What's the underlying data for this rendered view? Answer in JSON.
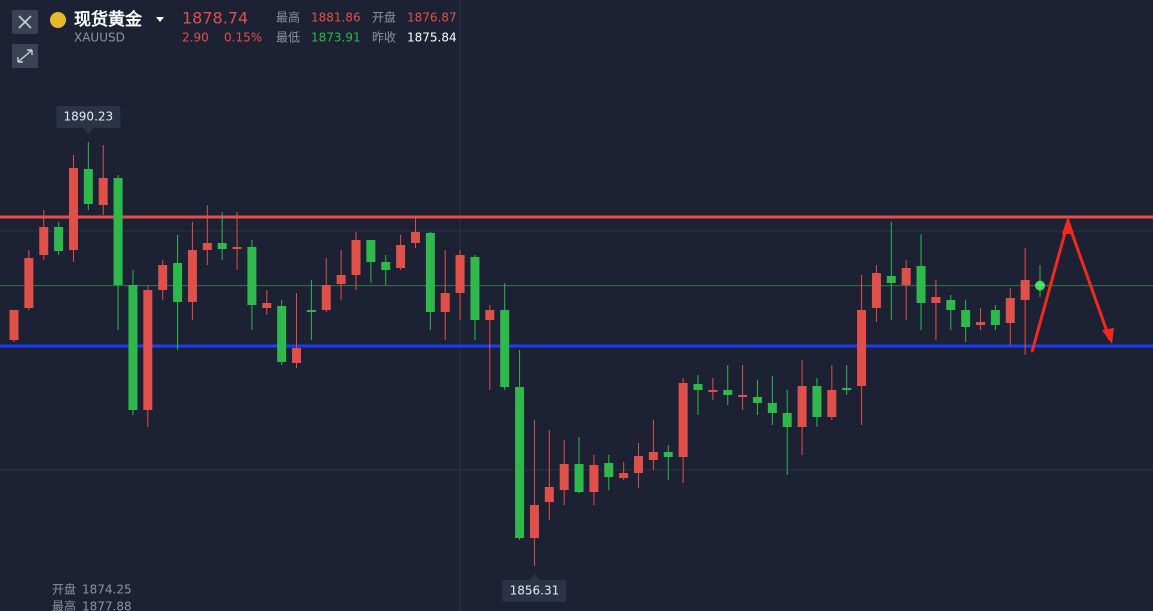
{
  "header": {
    "title": "现货黄金",
    "symbol": "XAUUSD",
    "price": "1878.74",
    "change": "2.90",
    "change_pct": "0.15%",
    "high_label": "最高",
    "high": "1881.86",
    "open_label": "开盘",
    "open": "1876.87",
    "low_label": "最低",
    "low": "1873.91",
    "prev_label": "昨收",
    "prev": "1875.84"
  },
  "footer": {
    "open_label": "开盘",
    "open": "1874.25",
    "high_label": "最高",
    "high": "1877.88"
  },
  "chart_data": {
    "type": "candlestick",
    "up_color": "#e0504a",
    "down_color": "#2fb84c",
    "ylim": [
      1852.71,
      1901.59
    ],
    "open": [
      1874.39,
      1876.95,
      1881.19,
      1883.43,
      1881.59,
      1888.07,
      1885.19,
      1887.35,
      1878.79,
      1868.79,
      1878.39,
      1880.55,
      1877.43,
      1881.59,
      1882.15,
      1881.67,
      1881.83,
      1876.95,
      1877.11,
      1872.55,
      1876.79,
      1876.79,
      1878.87,
      1879.59,
      1882.39,
      1880.63,
      1880.15,
      1882.15,
      1882.95,
      1876.63,
      1878.15,
      1881.03,
      1875.99,
      1876.79,
      1870.63,
      1858.55,
      1861.43,
      1862.39,
      1864.47,
      1862.23,
      1864.55,
      1863.35,
      1863.75,
      1864.79,
      1865.43,
      1865.03,
      1870.87,
      1870.23,
      1870.39,
      1869.83,
      1869.83,
      1869.35,
      1868.55,
      1867.43,
      1870.71,
      1868.23,
      1870.55,
      1870.71,
      1876.95,
      1879.51,
      1878.79,
      1880.31,
      1877.35,
      1877.59,
      1876.79,
      1875.59,
      1876.79,
      1875.75,
      1877.59,
      1878.87
    ],
    "high": [
      1876.79,
      1881.59,
      1884.79,
      1883.83,
      1889.19,
      1890.23,
      1889.99,
      1887.59,
      1879.99,
      1878.79,
      1880.79,
      1882.79,
      1883.83,
      1885.19,
      1884.63,
      1884.63,
      1882.39,
      1878.39,
      1877.59,
      1878.15,
      1879.19,
      1880.95,
      1881.59,
      1883.03,
      1882.39,
      1881.19,
      1882.79,
      1884.23,
      1883.03,
      1881.59,
      1881.59,
      1881.19,
      1877.19,
      1878.95,
      1873.59,
      1867.99,
      1867.19,
      1866.39,
      1866.63,
      1865.19,
      1865.19,
      1864.63,
      1866.15,
      1867.99,
      1865.99,
      1871.35,
      1871.59,
      1871.35,
      1872.39,
      1872.39,
      1871.19,
      1871.51,
      1870.39,
      1872.79,
      1871.35,
      1872.39,
      1872.39,
      1879.59,
      1880.39,
      1883.83,
      1880.79,
      1882.87,
      1879.19,
      1877.99,
      1877.59,
      1876.95,
      1877.19,
      1878.55,
      1881.75,
      1880.39
    ],
    "low": [
      1874.23,
      1876.79,
      1880.79,
      1881.19,
      1880.63,
      1884.79,
      1884.39,
      1875.19,
      1868.39,
      1867.43,
      1877.59,
      1873.59,
      1875.99,
      1880.39,
      1880.79,
      1879.99,
      1875.19,
      1876.39,
      1872.39,
      1872.15,
      1874.39,
      1876.63,
      1877.59,
      1878.39,
      1878.95,
      1878.79,
      1879.99,
      1881.75,
      1875.19,
      1874.39,
      1875.99,
      1874.39,
      1870.39,
      1870.39,
      1858.39,
      1856.31,
      1859.99,
      1861.19,
      1862.15,
      1861.19,
      1862.39,
      1863.19,
      1862.55,
      1863.99,
      1863.19,
      1862.95,
      1868.39,
      1869.59,
      1869.19,
      1868.79,
      1868.39,
      1867.59,
      1863.59,
      1865.19,
      1867.43,
      1867.99,
      1869.99,
      1867.59,
      1875.83,
      1875.99,
      1875.99,
      1875.19,
      1874.39,
      1875.19,
      1874.23,
      1875.19,
      1875.19,
      1873.99,
      1873.19,
      1877.83
    ],
    "close": [
      1876.79,
      1880.95,
      1883.43,
      1881.51,
      1888.15,
      1885.27,
      1887.35,
      1878.79,
      1868.79,
      1878.39,
      1880.39,
      1877.43,
      1881.59,
      1882.15,
      1881.67,
      1881.83,
      1877.19,
      1877.35,
      1872.63,
      1873.75,
      1876.63,
      1878.79,
      1879.59,
      1882.39,
      1880.63,
      1879.99,
      1881.99,
      1883.03,
      1876.63,
      1878.15,
      1881.19,
      1875.99,
      1876.79,
      1870.63,
      1858.55,
      1861.19,
      1862.63,
      1864.47,
      1862.23,
      1864.39,
      1863.43,
      1863.75,
      1865.11,
      1865.43,
      1865.03,
      1870.95,
      1870.39,
      1870.39,
      1869.99,
      1869.99,
      1869.35,
      1868.55,
      1867.43,
      1870.71,
      1868.23,
      1870.39,
      1870.39,
      1876.79,
      1879.75,
      1878.95,
      1880.15,
      1877.35,
      1877.83,
      1876.79,
      1875.43,
      1875.83,
      1875.59,
      1877.75,
      1879.19,
      1878.74
    ],
    "max_label": 1890.23,
    "min_label": 1856.31,
    "hlines": [
      {
        "value": 1884.23,
        "color": "#e0504a"
      },
      {
        "value": 1873.91,
        "color": "#1a3ef0"
      },
      {
        "value": 1878.74,
        "color": "#2f7d4a"
      }
    ]
  }
}
